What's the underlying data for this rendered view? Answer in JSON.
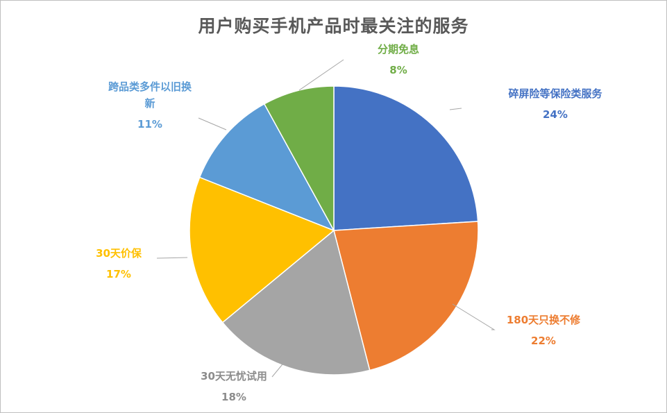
{
  "chart_data": {
    "type": "pie",
    "title": "用户购买手机产品时最关注的服务",
    "slices": [
      {
        "label": "碎屏险等保险类服务",
        "value": 24,
        "value_label": "24%",
        "color": "#4472C4"
      },
      {
        "label": "180天只换不修",
        "value": 22,
        "value_label": "22%",
        "color": "#ED7D31"
      },
      {
        "label": "30天无忧试用",
        "value": 18,
        "value_label": "18%",
        "color": "#A5A5A5"
      },
      {
        "label": "30天价保",
        "value": 17,
        "value_label": "17%",
        "color": "#FFC000"
      },
      {
        "label": "跨品类多件以旧换新",
        "label_lines": [
          "跨品类多件以旧换",
          "新"
        ],
        "value": 11,
        "value_label": "11%",
        "color": "#5B9BD5"
      },
      {
        "label": "分期免息",
        "value": 8,
        "value_label": "8%",
        "color": "#70AD47"
      }
    ]
  }
}
